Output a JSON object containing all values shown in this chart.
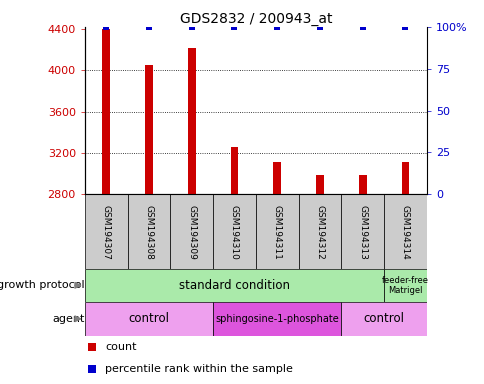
{
  "title": "GDS2832 / 200943_at",
  "samples": [
    "GSM194307",
    "GSM194308",
    "GSM194309",
    "GSM194310",
    "GSM194311",
    "GSM194312",
    "GSM194313",
    "GSM194314"
  ],
  "counts": [
    4400,
    4050,
    4220,
    3260,
    3110,
    2990,
    2990,
    3110
  ],
  "percentiles": [
    100,
    100,
    100,
    100,
    100,
    100,
    100,
    100
  ],
  "ymin": 2800,
  "ymax": 4400,
  "yticks": [
    2800,
    3200,
    3600,
    4000,
    4400
  ],
  "right_yticks": [
    0,
    25,
    50,
    75,
    100
  ],
  "bar_color": "#cc0000",
  "percentile_color": "#0000cc",
  "growth_protocol_groups": [
    {
      "label": "standard condition",
      "start": 0,
      "end": 7,
      "color": "#aaeaaa"
    },
    {
      "label": "feeder-free\nMatrigel",
      "start": 7,
      "end": 8,
      "color": "#aaeaaa"
    }
  ],
  "agent_groups": [
    {
      "label": "control",
      "start": 0,
      "end": 3,
      "color": "#eea0ee"
    },
    {
      "label": "sphingosine-1-phosphate",
      "start": 3,
      "end": 6,
      "color": "#dd55dd"
    },
    {
      "label": "control",
      "start": 6,
      "end": 8,
      "color": "#eea0ee"
    }
  ],
  "growth_label": "growth protocol",
  "agent_label": "agent",
  "legend_count_label": "count",
  "legend_percentile_label": "percentile rank within the sample",
  "background_color": "#ffffff",
  "grid_color": "#888888",
  "tick_label_color_left": "#cc0000",
  "tick_label_color_right": "#0000cc",
  "sample_box_color": "#cccccc"
}
